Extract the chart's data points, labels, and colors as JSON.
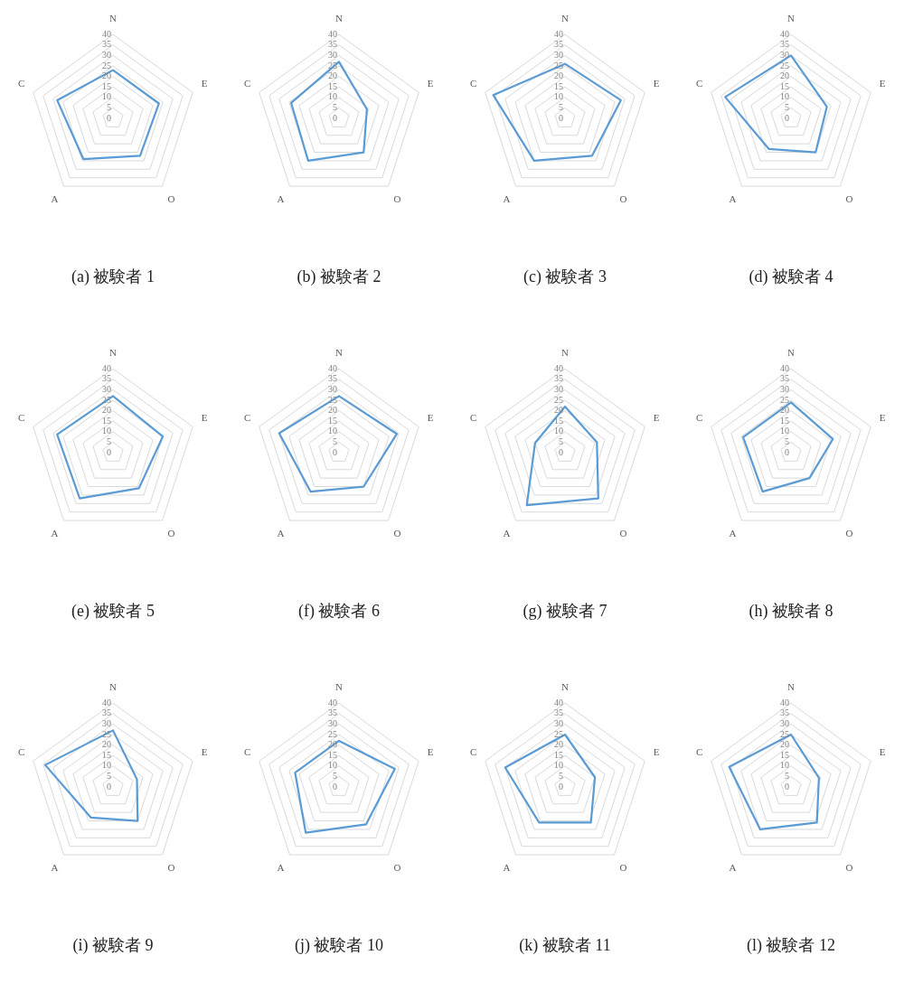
{
  "chart_data": [
    {
      "type": "radar",
      "title": "(a) 被験者 1",
      "categories": [
        "N",
        "E",
        "O",
        "A",
        "C"
      ],
      "series": [
        {
          "color": "#5b9bd5",
          "values": [
            23,
            23,
            22,
            24,
            28
          ]
        }
      ],
      "ylim": [
        0,
        40
      ],
      "yticks": [
        0,
        5,
        10,
        15,
        20,
        25,
        30,
        35,
        40
      ],
      "grid": true,
      "marker": "none"
    },
    {
      "type": "radar",
      "title": "(b) 被験者 2",
      "categories": [
        "N",
        "E",
        "O",
        "A",
        "C"
      ],
      "series": [
        {
          "color": "#5b9bd5",
          "values": [
            27,
            14,
            20,
            25,
            24
          ]
        }
      ],
      "ylim": [
        0,
        40
      ],
      "yticks": [
        0,
        5,
        10,
        15,
        20,
        25,
        30,
        35,
        40
      ],
      "grid": true,
      "marker": "none"
    },
    {
      "type": "radar",
      "title": "(c) 被験者 3",
      "categories": [
        "N",
        "E",
        "O",
        "A",
        "C"
      ],
      "series": [
        {
          "color": "#5b9bd5",
          "values": [
            26,
            28,
            22,
            25,
            36
          ]
        }
      ],
      "ylim": [
        0,
        40
      ],
      "yticks": [
        0,
        5,
        10,
        15,
        20,
        25,
        30,
        35,
        40
      ],
      "grid": true,
      "marker": "none"
    },
    {
      "type": "radar",
      "title": "(d) 被験者 4",
      "categories": [
        "N",
        "E",
        "O",
        "A",
        "C"
      ],
      "series": [
        {
          "color": "#5b9bd5",
          "values": [
            30,
            18,
            20,
            18,
            33
          ]
        }
      ],
      "ylim": [
        0,
        40
      ],
      "yticks": [
        0,
        5,
        10,
        15,
        20,
        25,
        30,
        35,
        40
      ],
      "grid": true,
      "marker": "none"
    },
    {
      "type": "radar",
      "title": "(e) 被験者 5",
      "categories": [
        "N",
        "E",
        "O",
        "A",
        "C"
      ],
      "series": [
        {
          "color": "#5b9bd5",
          "values": [
            27,
            25,
            21,
            27,
            28
          ]
        }
      ],
      "ylim": [
        0,
        40
      ],
      "yticks": [
        0,
        5,
        10,
        15,
        20,
        25,
        30,
        35,
        40
      ],
      "grid": true,
      "marker": "none"
    },
    {
      "type": "radar",
      "title": "(f) 被験者 6",
      "categories": [
        "N",
        "E",
        "O",
        "A",
        "C"
      ],
      "series": [
        {
          "color": "#5b9bd5",
          "values": [
            27,
            29,
            20,
            23,
            30
          ]
        }
      ],
      "ylim": [
        0,
        40
      ],
      "yticks": [
        0,
        5,
        10,
        15,
        20,
        25,
        30,
        35,
        40
      ],
      "grid": true,
      "marker": "none"
    },
    {
      "type": "radar",
      "title": "(g) 被験者 7",
      "categories": [
        "N",
        "E",
        "O",
        "A",
        "C"
      ],
      "series": [
        {
          "color": "#5b9bd5",
          "values": [
            22,
            16,
            27,
            31,
            15
          ]
        }
      ],
      "ylim": [
        0,
        40
      ],
      "yticks": [
        0,
        5,
        10,
        15,
        20,
        25,
        30,
        35,
        40
      ],
      "grid": true,
      "marker": "none"
    },
    {
      "type": "radar",
      "title": "(h) 被験者 8",
      "categories": [
        "N",
        "E",
        "O",
        "A",
        "C"
      ],
      "series": [
        {
          "color": "#5b9bd5",
          "values": [
            24,
            21,
            15,
            23,
            24
          ]
        }
      ],
      "ylim": [
        0,
        40
      ],
      "yticks": [
        0,
        5,
        10,
        15,
        20,
        25,
        30,
        35,
        40
      ],
      "grid": true,
      "marker": "none"
    },
    {
      "type": "radar",
      "title": "(i) 被験者 9",
      "categories": [
        "N",
        "E",
        "O",
        "A",
        "C"
      ],
      "series": [
        {
          "color": "#5b9bd5",
          "values": [
            27,
            12,
            20,
            18,
            34
          ]
        }
      ],
      "ylim": [
        0,
        40
      ],
      "yticks": [
        0,
        5,
        10,
        15,
        20,
        25,
        30,
        35,
        40
      ],
      "grid": true,
      "marker": "none"
    },
    {
      "type": "radar",
      "title": "(j) 被験者 10",
      "categories": [
        "N",
        "E",
        "O",
        "A",
        "C"
      ],
      "series": [
        {
          "color": "#5b9bd5",
          "values": [
            22,
            28,
            22,
            27,
            22
          ]
        }
      ],
      "ylim": [
        0,
        40
      ],
      "yticks": [
        0,
        5,
        10,
        15,
        20,
        25,
        30,
        35,
        40
      ],
      "grid": true,
      "marker": "none"
    },
    {
      "type": "radar",
      "title": "(k) 被験者 11",
      "categories": [
        "N",
        "E",
        "O",
        "A",
        "C"
      ],
      "series": [
        {
          "color": "#5b9bd5",
          "values": [
            25,
            15,
            21,
            21,
            30
          ]
        }
      ],
      "ylim": [
        0,
        40
      ],
      "yticks": [
        0,
        5,
        10,
        15,
        20,
        25,
        30,
        35,
        40
      ],
      "grid": true,
      "marker": "none"
    },
    {
      "type": "radar",
      "title": "(l) 被験者 12",
      "categories": [
        "N",
        "E",
        "O",
        "A",
        "C"
      ],
      "series": [
        {
          "color": "#5b9bd5",
          "values": [
            25,
            14,
            21,
            25,
            31
          ]
        }
      ],
      "ylim": [
        0,
        40
      ],
      "yticks": [
        0,
        5,
        10,
        15,
        20,
        25,
        30,
        35,
        40
      ],
      "grid": true,
      "marker": "none"
    }
  ]
}
